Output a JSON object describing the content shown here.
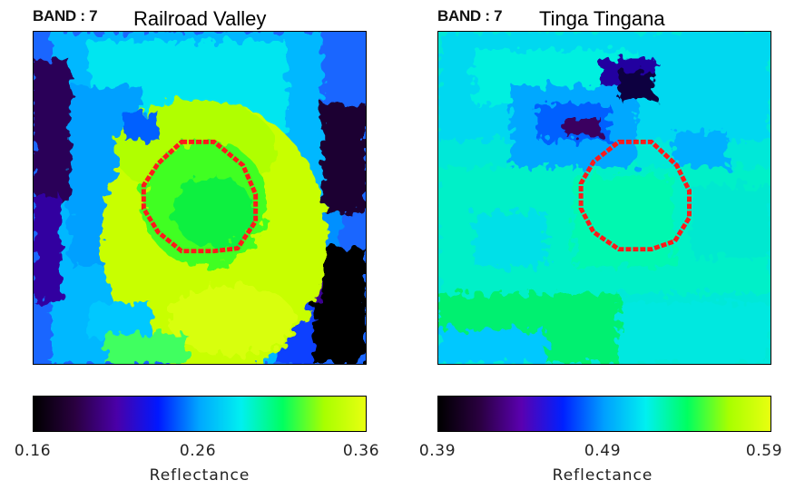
{
  "panels": [
    {
      "band_label": "BAND : 7",
      "site_name": "Railroad Valley",
      "colorbar": {
        "min": "0.16",
        "mid": "0.26",
        "max": "0.36",
        "label": "Reflectance",
        "gradient": [
          "#000000",
          "#2a0040",
          "#4a00a8",
          "#0018ff",
          "#00a8ff",
          "#00f0f0",
          "#00ff60",
          "#a8ff00",
          "#e8ff10"
        ]
      }
    },
    {
      "band_label": "BAND : 7",
      "site_name": "Tinga Tingana",
      "colorbar": {
        "min": "0.39",
        "mid": "0.49",
        "max": "0.59",
        "label": "Reflectance",
        "gradient": [
          "#000000",
          "#2a0040",
          "#5a00b0",
          "#0020ff",
          "#00a0ff",
          "#00f0f0",
          "#00ff60",
          "#a8ff00",
          "#e8ff10"
        ]
      }
    }
  ],
  "colors": {
    "roi_outline": "#ff2020"
  }
}
